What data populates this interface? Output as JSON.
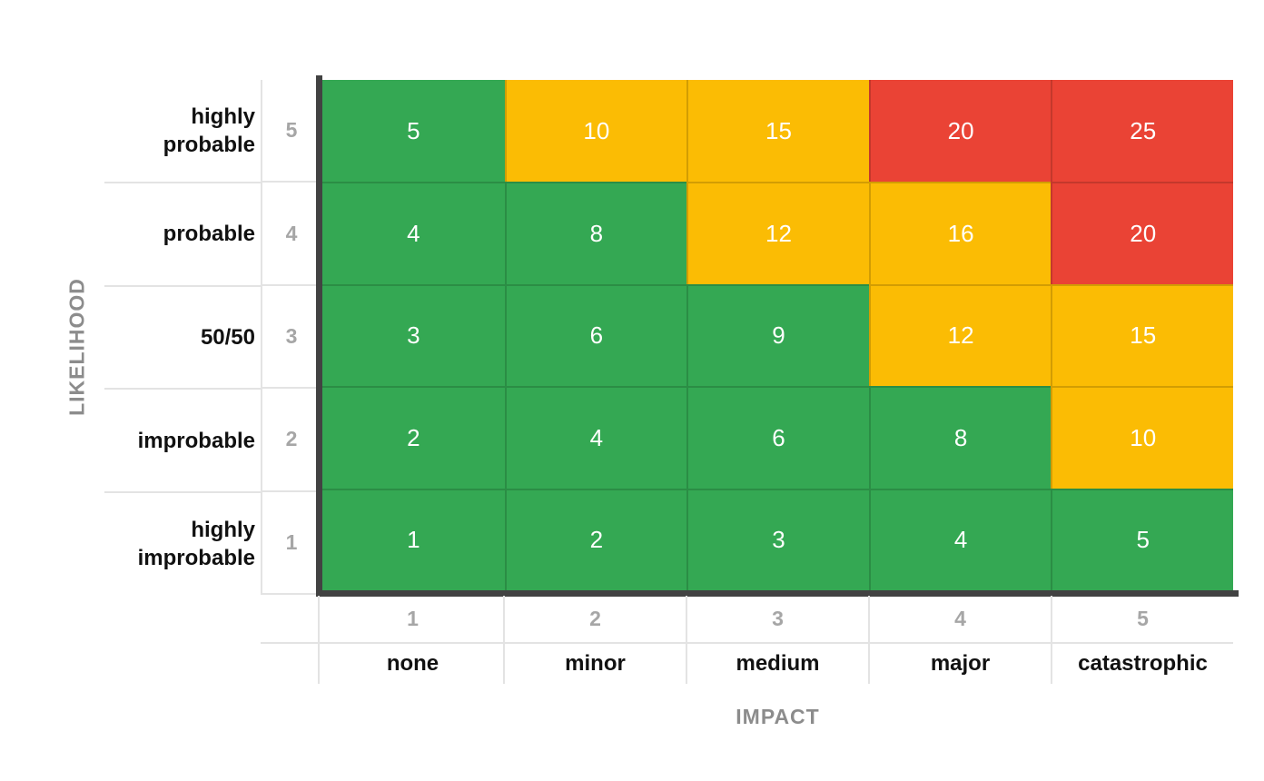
{
  "colors": {
    "green": "#34A853",
    "yellow": "#FBBC04",
    "red": "#EA4335",
    "axis_line": "#424242",
    "grid_line": "#E3E3E3",
    "tick_text": "#A6A6A6",
    "axis_title_text": "#8C8C8C",
    "label_text": "#111111",
    "cell_text": "#FFFFFF",
    "background": "#FFFFFF"
  },
  "y_axis": {
    "title": "LIKELIHOOD",
    "rows": [
      {
        "label": "highly probable",
        "tick": "5"
      },
      {
        "label": "probable",
        "tick": "4"
      },
      {
        "label": "50/50",
        "tick": "3"
      },
      {
        "label": "improbable",
        "tick": "2"
      },
      {
        "label": "highly improbable",
        "tick": "1"
      }
    ]
  },
  "x_axis": {
    "title": "IMPACT",
    "ticks": [
      "1",
      "2",
      "3",
      "4",
      "5"
    ],
    "labels": [
      "none",
      "minor",
      "medium",
      "major",
      "catastrophic"
    ]
  },
  "chart_data": {
    "type": "heatmap",
    "title": "",
    "xlabel": "IMPACT",
    "ylabel": "LIKELIHOOD",
    "x_ticks": [
      1,
      2,
      3,
      4,
      5
    ],
    "x_categories": [
      "none",
      "minor",
      "medium",
      "major",
      "catastrophic"
    ],
    "y_ticks": [
      5,
      4,
      3,
      2,
      1
    ],
    "y_categories": [
      "highly probable",
      "probable",
      "50/50",
      "improbable",
      "highly improbable"
    ],
    "values": [
      [
        5,
        10,
        15,
        20,
        25
      ],
      [
        4,
        8,
        12,
        16,
        20
      ],
      [
        3,
        6,
        9,
        12,
        15
      ],
      [
        2,
        4,
        6,
        8,
        10
      ],
      [
        1,
        2,
        3,
        4,
        5
      ]
    ],
    "cell_colors": [
      [
        "green",
        "yellow",
        "yellow",
        "red",
        "red"
      ],
      [
        "green",
        "green",
        "yellow",
        "yellow",
        "red"
      ],
      [
        "green",
        "green",
        "green",
        "yellow",
        "yellow"
      ],
      [
        "green",
        "green",
        "green",
        "green",
        "yellow"
      ],
      [
        "green",
        "green",
        "green",
        "green",
        "green"
      ]
    ],
    "legend_position": "none",
    "grid": true
  }
}
